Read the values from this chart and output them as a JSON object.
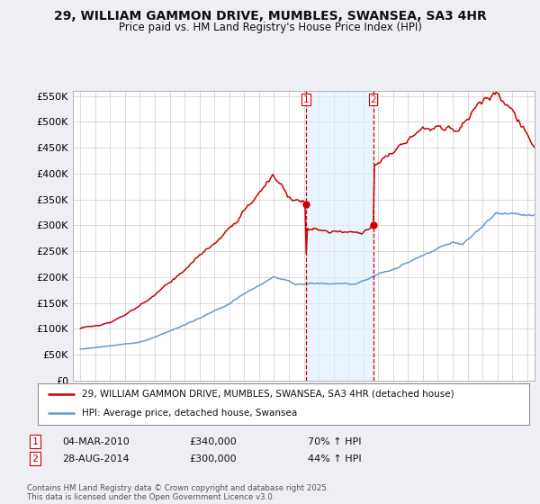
{
  "title_line1": "29, WILLIAM GAMMON DRIVE, MUMBLES, SWANSEA, SA3 4HR",
  "title_line2": "Price paid vs. HM Land Registry's House Price Index (HPI)",
  "background_color": "#eeeef5",
  "plot_bg_color": "#ffffff",
  "red_color": "#cc0000",
  "blue_color": "#6699cc",
  "vline1_x": 2010.17,
  "vline2_x": 2014.66,
  "vline_color": "#cc0000",
  "vline_fill_color": "#ddeeff",
  "ylim": [
    0,
    560000
  ],
  "yticks": [
    0,
    50000,
    100000,
    150000,
    200000,
    250000,
    300000,
    350000,
    400000,
    450000,
    500000,
    550000
  ],
  "ytick_labels": [
    "£0",
    "£50K",
    "£100K",
    "£150K",
    "£200K",
    "£250K",
    "£300K",
    "£350K",
    "£400K",
    "£450K",
    "£500K",
    "£550K"
  ],
  "xlim": [
    1994.5,
    2025.5
  ],
  "xticks": [
    1995,
    1996,
    1997,
    1998,
    1999,
    2000,
    2001,
    2002,
    2003,
    2004,
    2005,
    2006,
    2007,
    2008,
    2009,
    2010,
    2011,
    2012,
    2013,
    2014,
    2015,
    2016,
    2017,
    2018,
    2019,
    2020,
    2021,
    2022,
    2023,
    2024,
    2025
  ],
  "legend_line1": "29, WILLIAM GAMMON DRIVE, MUMBLES, SWANSEA, SA3 4HR (detached house)",
  "legend_line2": "HPI: Average price, detached house, Swansea",
  "annotation1_label": "1",
  "annotation1_date": "04-MAR-2010",
  "annotation1_price": "£340,000",
  "annotation1_hpi": "70% ↑ HPI",
  "annotation2_label": "2",
  "annotation2_date": "28-AUG-2014",
  "annotation2_price": "£300,000",
  "annotation2_hpi": "44% ↑ HPI",
  "footer": "Contains HM Land Registry data © Crown copyright and database right 2025.\nThis data is licensed under the Open Government Licence v3.0.",
  "sale1_val": 340000,
  "sale2_val": 300000
}
